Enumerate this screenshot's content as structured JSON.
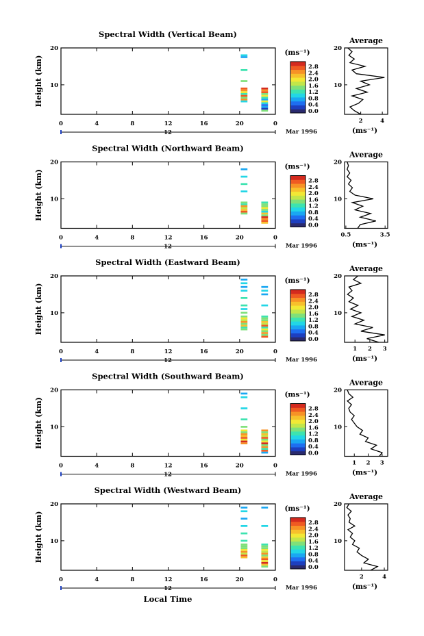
{
  "colormap": [
    "#2a2a6e",
    "#1d3fbf",
    "#1e6ef0",
    "#1aa7f2",
    "#22d6e6",
    "#3de3b0",
    "#7fe07a",
    "#c2e64a",
    "#f2e835",
    "#f7c02c",
    "#f79226",
    "#ef5a22",
    "#d42a1e"
  ],
  "panel_common": {
    "ylabel": "Height (km)",
    "yticks": [
      "10",
      "20"
    ],
    "xticks": [
      "0",
      "4",
      "8",
      "12",
      "16",
      "20",
      "0"
    ],
    "date_day": "12",
    "date_label": "Mar 1996",
    "colorbar_unit": "(ms⁻¹)",
    "colorbar_ticks": [
      "2.8",
      "2.4",
      "2.0",
      "1.6",
      "1.2",
      "0.8",
      "0.4",
      "0.0"
    ],
    "avg_title": "Average",
    "avg_xunit": "(ms⁻¹)"
  },
  "xlabel": "Local Time",
  "chart_data": [
    {
      "type": "heatmap",
      "title": "Spectral Width (Vertical Beam)",
      "x_range": [
        0,
        24
      ],
      "y_range": [
        2,
        20
      ],
      "color_range": [
        0.0,
        3.0
      ],
      "columns": [
        {
          "x": 20.5,
          "cells": [
            [
              18,
              1.0
            ],
            [
              17.5,
              0.9
            ],
            [
              14,
              1.3
            ],
            [
              11,
              1.5
            ],
            [
              9,
              2.6
            ],
            [
              8.5,
              2.4
            ],
            [
              8,
              2.0
            ],
            [
              7.5,
              1.2
            ],
            [
              7,
              2.7
            ],
            [
              6.5,
              1.4
            ],
            [
              6,
              2.5
            ],
            [
              5.5,
              1.0
            ]
          ]
        },
        {
          "x": 22.8,
          "cells": [
            [
              9,
              2.8
            ],
            [
              8.5,
              2.4
            ],
            [
              8,
              2.6
            ],
            [
              7.5,
              1.6
            ],
            [
              7,
              2.0
            ],
            [
              6.5,
              1.2
            ],
            [
              6,
              0.8
            ],
            [
              5.5,
              1.9
            ],
            [
              5,
              1.0
            ],
            [
              4.5,
              0.6
            ],
            [
              4,
              0.9
            ],
            [
              3.5,
              0.4
            ],
            [
              3,
              1.4
            ]
          ]
        }
      ],
      "average": {
        "xticks": [
          "2",
          "4"
        ],
        "x_range": [
          0.5,
          4.5
        ],
        "profile": [
          [
            2,
            2.0
          ],
          [
            3,
            1.4
          ],
          [
            4,
            1.0
          ],
          [
            5,
            1.8
          ],
          [
            6,
            2.2
          ],
          [
            7,
            1.2
          ],
          [
            8,
            2.6
          ],
          [
            9,
            1.6
          ],
          [
            10,
            2.8
          ],
          [
            11,
            2.0
          ],
          [
            12,
            4.2
          ],
          [
            13,
            1.6
          ],
          [
            14,
            1.2
          ],
          [
            15,
            2.4
          ],
          [
            16,
            1.0
          ],
          [
            17,
            1.4
          ],
          [
            18,
            0.9
          ],
          [
            19,
            1.2
          ],
          [
            20,
            0.8
          ]
        ]
      }
    },
    {
      "type": "heatmap",
      "title": "Spectral Width (Northward Beam)",
      "x_range": [
        0,
        24
      ],
      "y_range": [
        2,
        20
      ],
      "color_range": [
        0.0,
        3.0
      ],
      "columns": [
        {
          "x": 20.5,
          "cells": [
            [
              18,
              0.8
            ],
            [
              16,
              1.0
            ],
            [
              14,
              1.2
            ],
            [
              12,
              1.1
            ],
            [
              9,
              1.5
            ],
            [
              8.5,
              1.3
            ],
            [
              8,
              2.4
            ],
            [
              7.5,
              1.7
            ],
            [
              7,
              2.2
            ],
            [
              6.5,
              2.6
            ],
            [
              6,
              1.6
            ]
          ]
        },
        {
          "x": 22.8,
          "cells": [
            [
              9,
              1.2
            ],
            [
              8.5,
              1.6
            ],
            [
              8,
              1.4
            ],
            [
              7.5,
              2.0
            ],
            [
              7,
              1.4
            ],
            [
              6.5,
              1.0
            ],
            [
              6,
              2.2
            ],
            [
              5.5,
              1.6
            ],
            [
              5,
              2.8
            ],
            [
              4.5,
              2.4
            ],
            [
              4,
              2.6
            ],
            [
              3.5,
              2.2
            ]
          ]
        }
      ],
      "average": {
        "xticks": [
          "0.5",
          "3.5"
        ],
        "x_range": [
          0.4,
          3.7
        ],
        "profile": [
          [
            2,
            1.4
          ],
          [
            3,
            1.6
          ],
          [
            4,
            2.8
          ],
          [
            5,
            1.6
          ],
          [
            6,
            2.4
          ],
          [
            7,
            1.2
          ],
          [
            8,
            1.8
          ],
          [
            9,
            1.0
          ],
          [
            10,
            2.6
          ],
          [
            11,
            1.2
          ],
          [
            12,
            0.8
          ],
          [
            13,
            1.0
          ],
          [
            14,
            0.7
          ],
          [
            15,
            0.9
          ],
          [
            16,
            0.6
          ],
          [
            17,
            0.8
          ],
          [
            18,
            0.6
          ],
          [
            19,
            0.7
          ],
          [
            20,
            0.6
          ]
        ]
      }
    },
    {
      "type": "heatmap",
      "title": "Spectral Width (Eastward Beam)",
      "x_range": [
        0,
        24
      ],
      "y_range": [
        2,
        20
      ],
      "color_range": [
        0.0,
        3.0
      ],
      "columns": [
        {
          "x": 20.5,
          "cells": [
            [
              19,
              0.8
            ],
            [
              18,
              1.0
            ],
            [
              17,
              0.9
            ],
            [
              16,
              1.1
            ],
            [
              14,
              1.2
            ],
            [
              12,
              1.3
            ],
            [
              11,
              1.0
            ],
            [
              10,
              1.5
            ],
            [
              9,
              1.4
            ],
            [
              8.5,
              2.0
            ],
            [
              8,
              1.8
            ],
            [
              7.5,
              2.4
            ],
            [
              7,
              1.6
            ],
            [
              6.5,
              2.2
            ],
            [
              6,
              1.2
            ],
            [
              5.5,
              1.6
            ]
          ]
        },
        {
          "x": 22.8,
          "cells": [
            [
              17,
              0.8
            ],
            [
              16,
              1.0
            ],
            [
              15,
              0.9
            ],
            [
              12,
              1.1
            ],
            [
              9,
              1.2
            ],
            [
              8.5,
              1.6
            ],
            [
              8,
              1.4
            ],
            [
              7.5,
              2.2
            ],
            [
              7,
              1.8
            ],
            [
              6.5,
              2.6
            ],
            [
              6,
              1.2
            ],
            [
              5.5,
              2.0
            ],
            [
              5,
              1.4
            ],
            [
              4.5,
              2.4
            ],
            [
              4,
              1.6
            ],
            [
              3.5,
              2.6
            ]
          ]
        }
      ],
      "average": {
        "xticks": [
          "1",
          "2",
          "3"
        ],
        "x_range": [
          0.3,
          3.2
        ],
        "profile": [
          [
            2,
            2.6
          ],
          [
            3,
            1.8
          ],
          [
            4,
            3.0
          ],
          [
            5,
            1.4
          ],
          [
            6,
            2.2
          ],
          [
            7,
            1.0
          ],
          [
            8,
            1.6
          ],
          [
            9,
            0.8
          ],
          [
            10,
            1.4
          ],
          [
            11,
            0.7
          ],
          [
            12,
            1.2
          ],
          [
            13,
            0.6
          ],
          [
            14,
            0.9
          ],
          [
            15,
            0.5
          ],
          [
            16,
            0.8
          ],
          [
            17,
            0.6
          ],
          [
            18,
            1.4
          ],
          [
            19,
            0.9
          ],
          [
            20,
            1.2
          ]
        ]
      }
    },
    {
      "type": "heatmap",
      "title": "Spectral Width (Southward Beam)",
      "x_range": [
        0,
        24
      ],
      "y_range": [
        2,
        20
      ],
      "color_range": [
        0.0,
        3.0
      ],
      "columns": [
        {
          "x": 20.5,
          "cells": [
            [
              19,
              0.8
            ],
            [
              18,
              1.0
            ],
            [
              15,
              1.1
            ],
            [
              12,
              1.3
            ],
            [
              10,
              1.4
            ],
            [
              9,
              2.0
            ],
            [
              8.5,
              1.6
            ],
            [
              8,
              2.4
            ],
            [
              7.5,
              2.2
            ],
            [
              7,
              2.6
            ],
            [
              6.5,
              2.0
            ],
            [
              6,
              2.8
            ],
            [
              5.5,
              2.4
            ]
          ]
        },
        {
          "x": 22.8,
          "cells": [
            [
              9,
              2.4
            ],
            [
              8.5,
              1.6
            ],
            [
              8,
              2.2
            ],
            [
              7.5,
              1.8
            ],
            [
              7,
              2.6
            ],
            [
              6.5,
              1.4
            ],
            [
              6,
              2.0
            ],
            [
              5.5,
              2.8
            ],
            [
              5,
              1.6
            ],
            [
              4.5,
              2.4
            ],
            [
              4,
              1.2
            ],
            [
              3.5,
              2.6
            ],
            [
              3,
              0.8
            ]
          ]
        }
      ],
      "average": {
        "xticks": [
          "1",
          "2",
          "3"
        ],
        "x_range": [
          0.3,
          3.4
        ],
        "profile": [
          [
            2,
            2.8
          ],
          [
            3,
            3.0
          ],
          [
            4,
            2.2
          ],
          [
            5,
            2.6
          ],
          [
            6,
            1.8
          ],
          [
            7,
            2.0
          ],
          [
            8,
            1.4
          ],
          [
            9,
            1.6
          ],
          [
            10,
            1.2
          ],
          [
            11,
            1.0
          ],
          [
            12,
            0.8
          ],
          [
            13,
            1.0
          ],
          [
            14,
            0.7
          ],
          [
            15,
            0.6
          ],
          [
            16,
            0.8
          ],
          [
            17,
            0.5
          ],
          [
            18,
            0.9
          ],
          [
            19,
            0.6
          ],
          [
            20,
            0.5
          ]
        ]
      }
    },
    {
      "type": "heatmap",
      "title": "Spectral Width (Westward Beam)",
      "x_range": [
        0,
        24
      ],
      "y_range": [
        2,
        20
      ],
      "color_range": [
        0.0,
        3.0
      ],
      "columns": [
        {
          "x": 20.5,
          "cells": [
            [
              19,
              0.8
            ],
            [
              18,
              1.0
            ],
            [
              16,
              0.9
            ],
            [
              14,
              1.1
            ],
            [
              12,
              1.2
            ],
            [
              10,
              1.3
            ],
            [
              9,
              1.4
            ],
            [
              8.5,
              1.6
            ],
            [
              8,
              1.5
            ],
            [
              7.5,
              2.0
            ],
            [
              7,
              2.4
            ],
            [
              6.5,
              1.8
            ],
            [
              6,
              2.6
            ],
            [
              5.5,
              2.2
            ]
          ]
        },
        {
          "x": 22.8,
          "cells": [
            [
              19,
              0.8
            ],
            [
              14,
              1.0
            ],
            [
              9,
              1.2
            ],
            [
              8.5,
              1.4
            ],
            [
              8,
              1.6
            ],
            [
              7.5,
              2.0
            ],
            [
              7,
              1.8
            ],
            [
              6.5,
              2.4
            ],
            [
              6,
              1.6
            ],
            [
              5.5,
              2.2
            ],
            [
              5,
              2.6
            ],
            [
              4.5,
              2.0
            ],
            [
              4,
              2.8
            ],
            [
              3.5,
              2.2
            ],
            [
              3,
              1.6
            ]
          ]
        }
      ],
      "average": {
        "xticks": [
          "2",
          "4"
        ],
        "x_range": [
          0.5,
          4.3
        ],
        "profile": [
          [
            2,
            2.8
          ],
          [
            3,
            3.4
          ],
          [
            4,
            2.2
          ],
          [
            5,
            2.6
          ],
          [
            6,
            2.0
          ],
          [
            7,
            1.6
          ],
          [
            8,
            1.8
          ],
          [
            9,
            1.2
          ],
          [
            10,
            1.4
          ],
          [
            11,
            1.0
          ],
          [
            12,
            1.2
          ],
          [
            13,
            0.8
          ],
          [
            14,
            1.4
          ],
          [
            15,
            0.9
          ],
          [
            16,
            1.0
          ],
          [
            17,
            0.8
          ],
          [
            18,
            1.1
          ],
          [
            19,
            0.7
          ],
          [
            20,
            0.9
          ]
        ]
      }
    }
  ]
}
